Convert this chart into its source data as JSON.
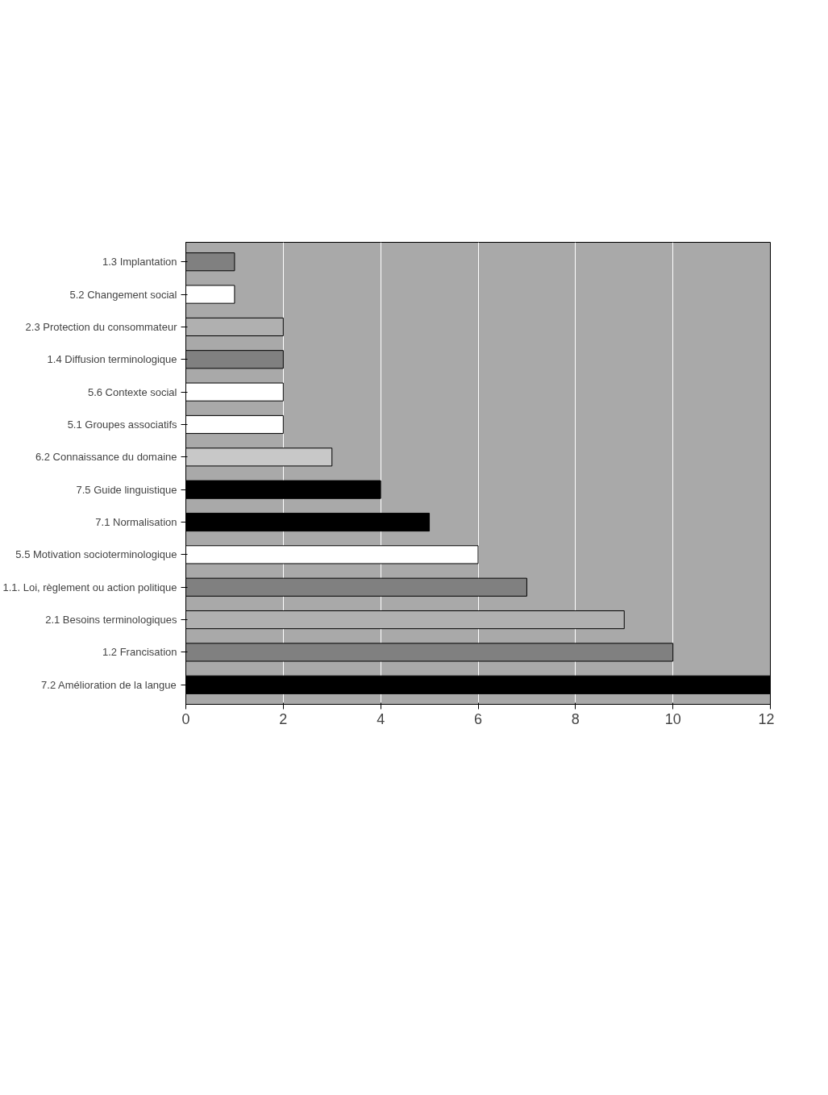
{
  "chart_data": {
    "type": "bar",
    "orientation": "horizontal",
    "categories": [
      "1.3 Implantation",
      "5.2 Changement social",
      "2.3 Protection du consommateur",
      "1.4 Diffusion terminologique",
      "5.6 Contexte social",
      "5.1 Groupes associatifs",
      "6.2 Connaissance du domaine",
      "7.5 Guide linguistique",
      "7.1 Normalisation",
      "5.5 Motivation socioterminologique",
      "1.1. Loi, règlement ou action politique",
      "2.1 Besoins terminologiques",
      "1.2 Francisation",
      "7.2 Amélioration de la langue"
    ],
    "values": [
      1,
      1,
      2,
      2,
      2,
      2,
      3,
      4,
      5,
      6,
      7,
      9,
      10,
      12
    ],
    "colors": [
      "#808080",
      "#ffffff",
      "#b0b0b0",
      "#808080",
      "#ffffff",
      "#ffffff",
      "#c8c8c8",
      "#000000",
      "#000000",
      "#ffffff",
      "#808080",
      "#b0b0b0",
      "#808080",
      "#000000"
    ],
    "xlim": [
      0,
      12
    ],
    "xticks": [
      0,
      2,
      4,
      6,
      8,
      10,
      12
    ],
    "grid": "x"
  }
}
